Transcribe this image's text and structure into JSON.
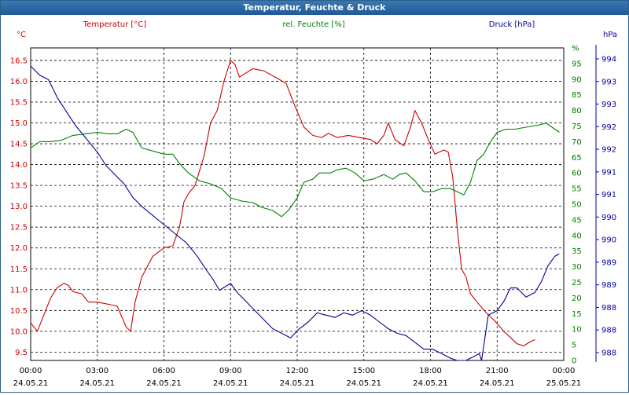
{
  "window": {
    "title": "Temperatur, Feuchte & Druck"
  },
  "chart_data": {
    "type": "line",
    "title": "Temperatur, Feuchte & Druck",
    "grid": true,
    "x": {
      "tick_labels": [
        {
          "time": "00:00",
          "date": "24.05.21"
        },
        {
          "time": "03:00",
          "date": "24.05.21"
        },
        {
          "time": "06:00",
          "date": "24.05.21"
        },
        {
          "time": "09:00",
          "date": "24.05.21"
        },
        {
          "time": "12:00",
          "date": "24.05.21"
        },
        {
          "time": "15:00",
          "date": "24.05.21"
        },
        {
          "time": "18:00",
          "date": "24.05.21"
        },
        {
          "time": "21:00",
          "date": "24.05.21"
        },
        {
          "time": "00:00",
          "date": "25.05.21"
        }
      ],
      "range_hours": [
        0,
        24
      ]
    },
    "axes": {
      "left": {
        "unit": "°C",
        "ticks": [
          "9.5",
          "10.0",
          "10.5",
          "11.0",
          "11.5",
          "12.0",
          "12.5",
          "13.0",
          "13.5",
          "14.0",
          "14.5",
          "15.0",
          "15.5",
          "16.0",
          "16.5"
        ],
        "range": [
          9.3,
          16.8
        ]
      },
      "middle": {
        "unit": "%",
        "ticks": [
          "0",
          "5",
          "10",
          "15",
          "20",
          "25",
          "30",
          "35",
          "40",
          "45",
          "50",
          "55",
          "60",
          "65",
          "70",
          "75",
          "80",
          "85",
          "90",
          "95",
          "%"
        ],
        "range": [
          0,
          100
        ]
      },
      "right": {
        "unit": "hPa",
        "ticks": [
          "988",
          "988",
          "988",
          "989",
          "989",
          "990",
          "990",
          "991",
          "991",
          "992",
          "992",
          "993",
          "993",
          "994"
        ],
        "range": [
          987.7,
          994.6
        ]
      }
    },
    "series": [
      {
        "name": "Temperatur [°C]",
        "color": "#cc0000",
        "axis": "left",
        "points": [
          [
            0,
            10.2
          ],
          [
            0.3,
            10.0
          ],
          [
            0.6,
            10.4
          ],
          [
            0.9,
            10.8
          ],
          [
            1.2,
            11.05
          ],
          [
            1.5,
            11.15
          ],
          [
            1.7,
            11.1
          ],
          [
            1.9,
            10.95
          ],
          [
            2.3,
            10.9
          ],
          [
            2.6,
            10.7
          ],
          [
            3.0,
            10.7
          ],
          [
            3.5,
            10.65
          ],
          [
            3.9,
            10.6
          ],
          [
            4.3,
            10.1
          ],
          [
            4.5,
            10.0
          ],
          [
            4.7,
            10.7
          ],
          [
            5.0,
            11.3
          ],
          [
            5.5,
            11.8
          ],
          [
            6.0,
            12.0
          ],
          [
            6.4,
            12.05
          ],
          [
            6.7,
            12.5
          ],
          [
            6.9,
            13.1
          ],
          [
            7.1,
            13.3
          ],
          [
            7.4,
            13.5
          ],
          [
            7.8,
            14.2
          ],
          [
            8.1,
            15.0
          ],
          [
            8.4,
            15.3
          ],
          [
            8.7,
            16.0
          ],
          [
            9.0,
            16.5
          ],
          [
            9.2,
            16.4
          ],
          [
            9.4,
            16.1
          ],
          [
            9.7,
            16.2
          ],
          [
            10.0,
            16.3
          ],
          [
            10.5,
            16.25
          ],
          [
            11.0,
            16.1
          ],
          [
            11.5,
            15.95
          ],
          [
            11.9,
            15.4
          ],
          [
            12.3,
            14.9
          ],
          [
            12.7,
            14.7
          ],
          [
            13.1,
            14.65
          ],
          [
            13.4,
            14.75
          ],
          [
            13.8,
            14.65
          ],
          [
            14.3,
            14.7
          ],
          [
            14.8,
            14.65
          ],
          [
            15.3,
            14.6
          ],
          [
            15.6,
            14.5
          ],
          [
            15.9,
            14.7
          ],
          [
            16.1,
            15.0
          ],
          [
            16.4,
            14.6
          ],
          [
            16.8,
            14.45
          ],
          [
            17.1,
            14.9
          ],
          [
            17.3,
            15.3
          ],
          [
            17.6,
            15.0
          ],
          [
            17.9,
            14.6
          ],
          [
            18.2,
            14.25
          ],
          [
            18.6,
            14.35
          ],
          [
            18.8,
            14.3
          ],
          [
            19.0,
            13.7
          ],
          [
            19.2,
            12.5
          ],
          [
            19.4,
            11.5
          ],
          [
            19.6,
            11.3
          ],
          [
            19.8,
            10.9
          ],
          [
            20.1,
            10.7
          ],
          [
            20.5,
            10.45
          ],
          [
            20.9,
            10.25
          ],
          [
            21.3,
            10.0
          ],
          [
            21.6,
            9.85
          ],
          [
            21.9,
            9.7
          ],
          [
            22.2,
            9.65
          ],
          [
            22.5,
            9.75
          ],
          [
            22.7,
            9.8
          ]
        ]
      },
      {
        "name": "rel. Feuchte [%]",
        "color": "#008000",
        "axis": "middle",
        "points": [
          [
            0,
            68
          ],
          [
            0.4,
            70
          ],
          [
            0.9,
            70
          ],
          [
            1.4,
            70.5
          ],
          [
            1.9,
            72
          ],
          [
            2.5,
            72.5
          ],
          [
            3.0,
            73
          ],
          [
            3.5,
            72.5
          ],
          [
            3.9,
            72.5
          ],
          [
            4.3,
            74
          ],
          [
            4.6,
            73
          ],
          [
            5.0,
            68
          ],
          [
            5.5,
            67
          ],
          [
            6.0,
            66
          ],
          [
            6.4,
            66
          ],
          [
            6.7,
            63
          ],
          [
            7.1,
            60
          ],
          [
            7.6,
            57.5
          ],
          [
            8.1,
            56.5
          ],
          [
            8.6,
            55
          ],
          [
            9.0,
            52
          ],
          [
            9.5,
            51
          ],
          [
            10.0,
            50.5
          ],
          [
            10.4,
            49
          ],
          [
            10.9,
            48
          ],
          [
            11.3,
            46
          ],
          [
            11.6,
            48
          ],
          [
            12.0,
            52
          ],
          [
            12.3,
            57
          ],
          [
            12.7,
            58
          ],
          [
            13.0,
            60
          ],
          [
            13.5,
            60
          ],
          [
            13.8,
            61
          ],
          [
            14.2,
            61.5
          ],
          [
            14.6,
            60
          ],
          [
            15.0,
            57.5
          ],
          [
            15.4,
            58
          ],
          [
            15.9,
            59.5
          ],
          [
            16.3,
            58
          ],
          [
            16.6,
            59.5
          ],
          [
            16.9,
            60
          ],
          [
            17.3,
            57.5
          ],
          [
            17.7,
            54
          ],
          [
            18.1,
            54
          ],
          [
            18.5,
            55
          ],
          [
            18.9,
            55
          ],
          [
            19.2,
            54
          ],
          [
            19.5,
            53
          ],
          [
            19.8,
            57
          ],
          [
            20.1,
            64
          ],
          [
            20.4,
            66
          ],
          [
            20.7,
            70
          ],
          [
            21.0,
            73
          ],
          [
            21.4,
            74
          ],
          [
            21.8,
            74
          ],
          [
            22.2,
            74.5
          ],
          [
            22.6,
            75
          ],
          [
            23.0,
            75.5
          ],
          [
            23.2,
            76
          ],
          [
            23.5,
            74.5
          ],
          [
            23.8,
            73
          ]
        ]
      },
      {
        "name": "Druck [hPa]",
        "color": "#000099",
        "axis": "right",
        "points": [
          [
            0,
            994.2
          ],
          [
            0.4,
            994.0
          ],
          [
            0.8,
            993.9
          ],
          [
            1.2,
            993.5
          ],
          [
            1.6,
            993.2
          ],
          [
            2.0,
            992.9
          ],
          [
            2.5,
            992.6
          ],
          [
            3.0,
            992.3
          ],
          [
            3.4,
            992.0
          ],
          [
            3.8,
            991.8
          ],
          [
            4.2,
            991.6
          ],
          [
            4.6,
            991.3
          ],
          [
            5.0,
            991.1
          ],
          [
            5.5,
            990.9
          ],
          [
            6.0,
            990.7
          ],
          [
            6.5,
            990.5
          ],
          [
            7.0,
            990.3
          ],
          [
            7.5,
            990.0
          ],
          [
            7.9,
            989.7
          ],
          [
            8.2,
            989.5
          ],
          [
            8.5,
            989.25
          ],
          [
            9.0,
            989.4
          ],
          [
            9.3,
            989.2
          ],
          [
            9.6,
            989.05
          ],
          [
            10.0,
            988.85
          ],
          [
            10.5,
            988.6
          ],
          [
            10.9,
            988.4
          ],
          [
            11.3,
            988.3
          ],
          [
            11.7,
            988.2
          ],
          [
            12.1,
            988.4
          ],
          [
            12.5,
            988.55
          ],
          [
            12.9,
            988.75
          ],
          [
            13.3,
            988.7
          ],
          [
            13.7,
            988.65
          ],
          [
            14.1,
            988.75
          ],
          [
            14.5,
            988.7
          ],
          [
            14.9,
            988.8
          ],
          [
            15.3,
            988.7
          ],
          [
            15.7,
            988.55
          ],
          [
            16.1,
            988.4
          ],
          [
            16.5,
            988.3
          ],
          [
            16.9,
            988.25
          ],
          [
            17.3,
            988.1
          ],
          [
            17.7,
            987.95
          ],
          [
            18.1,
            987.95
          ],
          [
            18.5,
            987.85
          ],
          [
            18.9,
            987.75
          ],
          [
            19.2,
            987.7
          ],
          [
            19.6,
            987.7
          ],
          [
            20.0,
            987.8
          ],
          [
            20.2,
            987.85
          ],
          [
            20.3,
            987.7
          ],
          [
            20.6,
            988.7
          ],
          [
            21.0,
            988.8
          ],
          [
            21.3,
            989.0
          ],
          [
            21.6,
            989.3
          ],
          [
            21.9,
            989.3
          ],
          [
            22.3,
            989.1
          ],
          [
            22.7,
            989.2
          ],
          [
            23.0,
            989.45
          ],
          [
            23.3,
            989.8
          ],
          [
            23.6,
            990.0
          ],
          [
            23.8,
            990.05
          ]
        ]
      }
    ]
  }
}
